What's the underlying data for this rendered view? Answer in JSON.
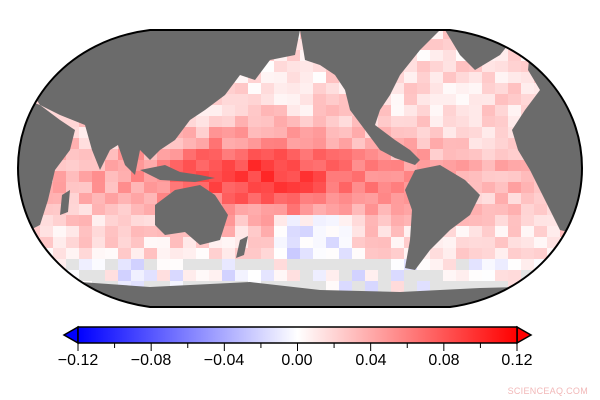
{
  "map": {
    "projection": "Robinson, Pacific-centered",
    "colors": {
      "land": "#6b6b6b",
      "missing": "#e3e3e3",
      "ocean_neg": "#0000ff",
      "ocean_pos": "#ff0000",
      "neutral": "#ffffff"
    }
  },
  "colorbar": {
    "min": -0.12,
    "max": 0.12,
    "tick_step": 0.02,
    "labels": [
      "−0.12",
      "−0.08",
      "−0.04",
      "0.00",
      "0.04",
      "0.08",
      "0.12"
    ],
    "extend": "both"
  },
  "watermark": "SCIENCEAQ.COM"
}
